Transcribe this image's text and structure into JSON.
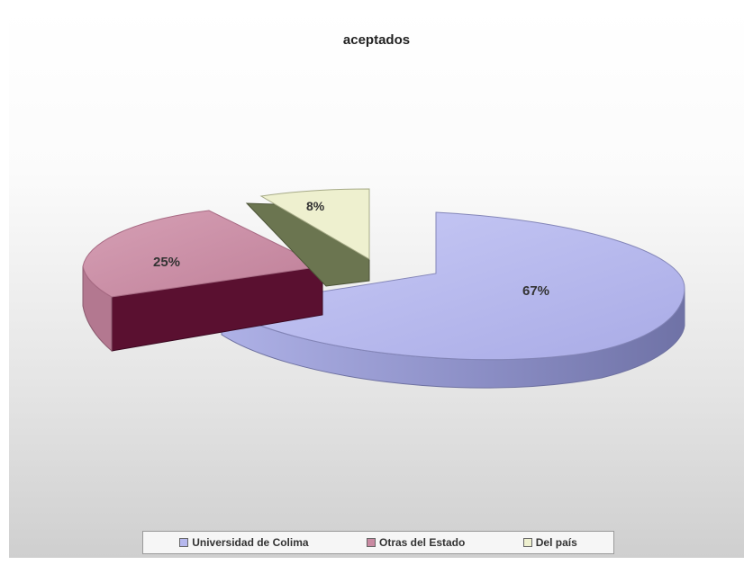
{
  "chart_data": {
    "type": "pie",
    "title": "aceptados",
    "three_d": true,
    "exploded": true,
    "slices": [
      {
        "label": "Universidad de Colima",
        "value": 67,
        "value_label": "67%",
        "color": "#b6b8ee",
        "side_color": "#8a8cc0"
      },
      {
        "label": "Otras del Estado",
        "value": 25,
        "value_label": "25%",
        "color": "#c98aa2",
        "side_color": "#5a1030"
      },
      {
        "label": "Del país",
        "value": 8,
        "value_label": "8%",
        "color": "#eef0cf",
        "side_color": "#6b7550"
      }
    ],
    "legend": {
      "position": "bottom"
    }
  }
}
